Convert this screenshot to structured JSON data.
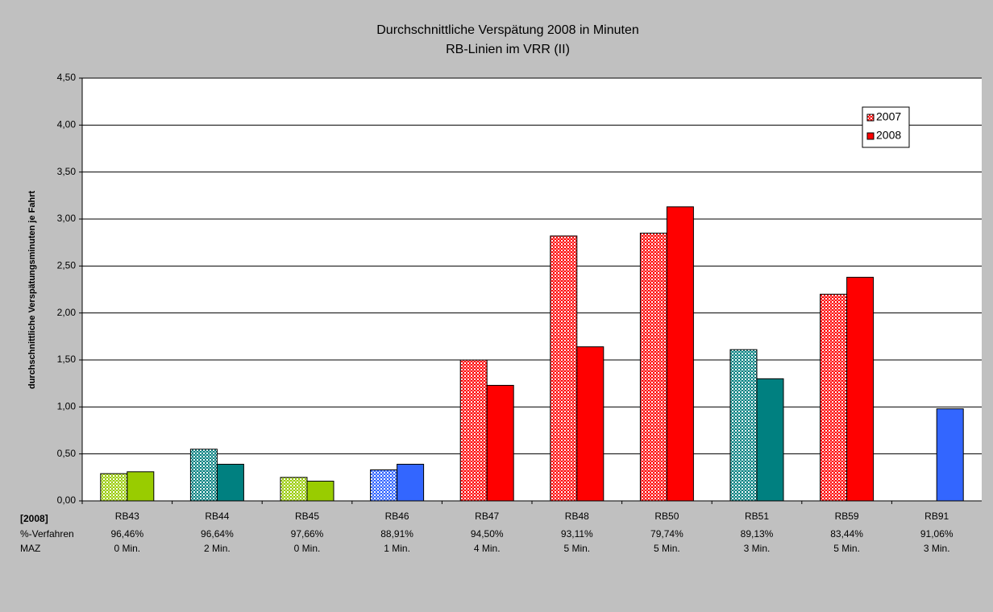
{
  "chart_data": {
    "type": "bar",
    "title": "Durchschnittliche Verspätung 2008 in Minuten",
    "subtitle": "RB-Linien im VRR (II)",
    "y_label": "durchschnittliche Verspätungsminuten je Fahrt",
    "categories": [
      "RB43",
      "RB44",
      "RB45",
      "RB46",
      "RB47",
      "RB48",
      "RB50",
      "RB51",
      "RB59",
      "RB91"
    ],
    "colors": [
      "#99cc00",
      "#008080",
      "#99cc00",
      "#3366ff",
      "#ff0000",
      "#ff0000",
      "#ff0000",
      "#008080",
      "#ff0000",
      "#3366ff"
    ],
    "series": [
      {
        "name": "2007",
        "color": "#ff0000",
        "hatched": true,
        "values": [
          0.29,
          0.55,
          0.25,
          0.33,
          1.5,
          2.82,
          2.85,
          1.61,
          2.2,
          null
        ]
      },
      {
        "name": "2008",
        "color": "#ff0000",
        "hatched": false,
        "values": [
          0.31,
          0.39,
          0.21,
          0.39,
          1.23,
          1.64,
          3.13,
          1.3,
          2.38,
          0.98
        ]
      }
    ],
    "ylim": [
      0,
      4.5
    ],
    "yticks": [
      {
        "value": 0,
        "label": "0,00"
      },
      {
        "value": 0.5,
        "label": "0,50"
      },
      {
        "value": 1,
        "label": "1,00"
      },
      {
        "value": 1.5,
        "label": "1,50"
      },
      {
        "value": 2,
        "label": "2,00"
      },
      {
        "value": 2.5,
        "label": "2,50"
      },
      {
        "value": 3,
        "label": "3,00"
      },
      {
        "value": 3.5,
        "label": "3,50"
      },
      {
        "value": 4,
        "label": "4,00"
      },
      {
        "value": 4.5,
        "label": "4,50"
      }
    ],
    "grid": true,
    "legend": "top-right",
    "table": {
      "heading": "[2008]",
      "rows": [
        {
          "label": "%-Verfahren",
          "values": [
            "96,46%",
            "96,64%",
            "97,66%",
            "88,91%",
            "94,50%",
            "93,11%",
            "79,74%",
            "89,13%",
            "83,44%",
            "91,06%"
          ]
        },
        {
          "label": "MAZ",
          "values": [
            "0 Min.",
            "2 Min.",
            "0 Min.",
            "1 Min.",
            "4 Min.",
            "5 Min.",
            "5 Min.",
            "3 Min.",
            "5 Min.",
            "3 Min."
          ]
        }
      ]
    }
  }
}
